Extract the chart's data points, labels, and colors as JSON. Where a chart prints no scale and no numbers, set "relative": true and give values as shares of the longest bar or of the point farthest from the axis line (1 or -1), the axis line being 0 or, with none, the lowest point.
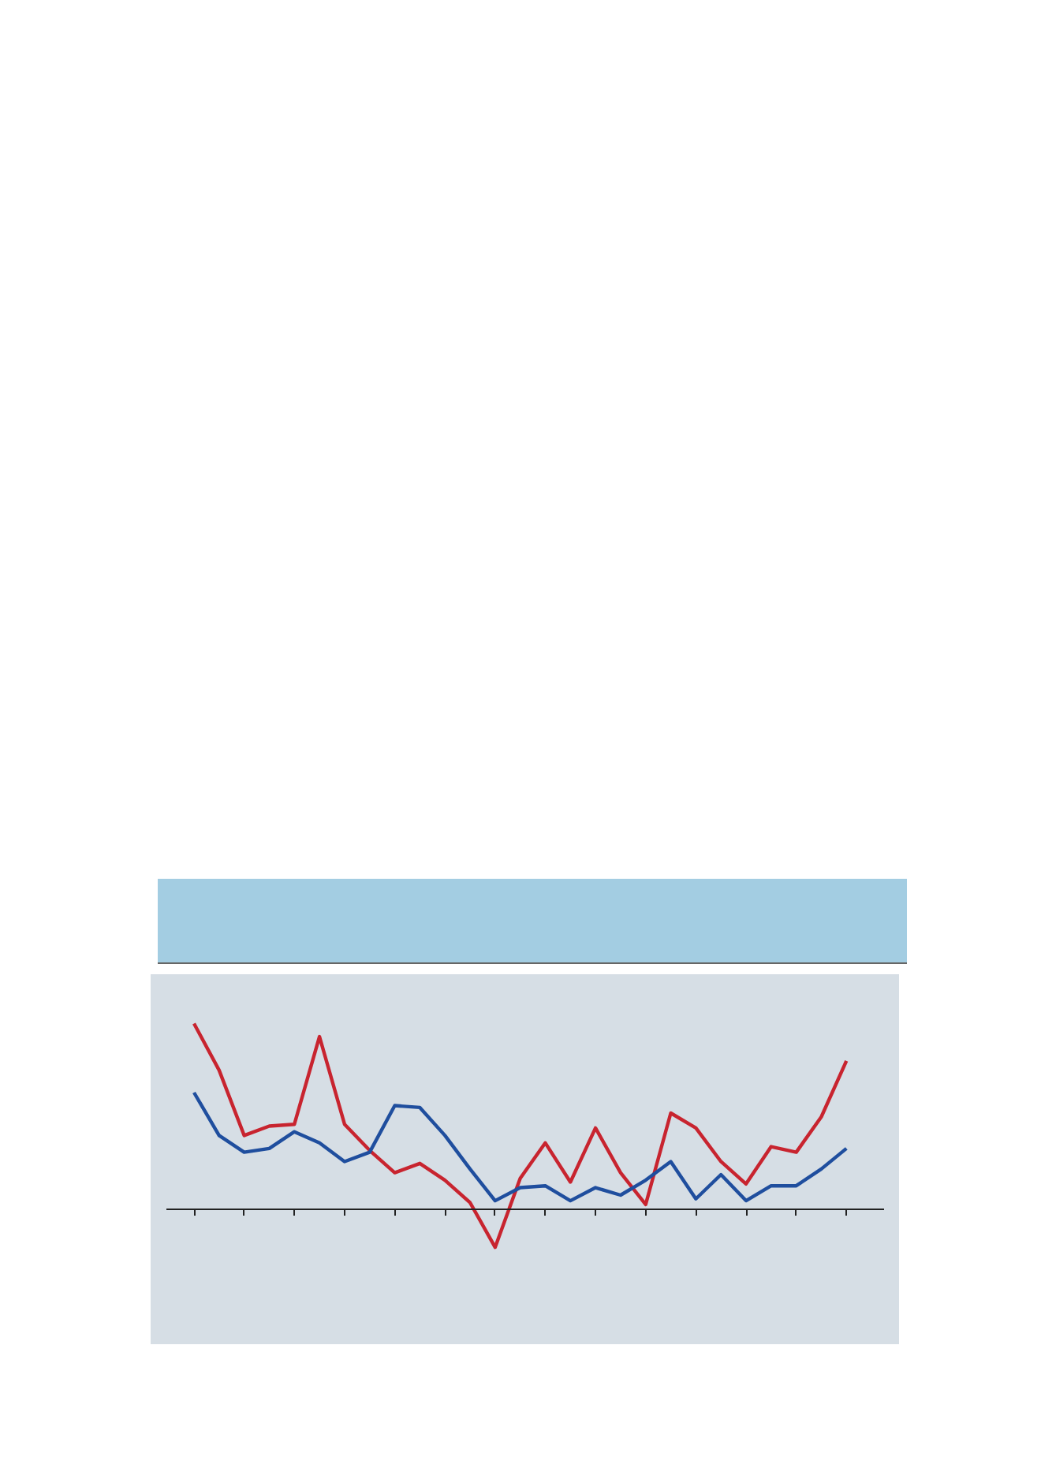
{
  "chart_data": {
    "type": "line",
    "relative": true,
    "categories": [
      null,
      null,
      null,
      null,
      null,
      null,
      null,
      null,
      null,
      null,
      null,
      null,
      null,
      null,
      null,
      null,
      null,
      null,
      null,
      null,
      null,
      null,
      null,
      null,
      null,
      null,
      null
    ],
    "series": [
      {
        "color": "#c8242f",
        "values": [
          1,
          0.75,
          0.4,
          0.45,
          0.46,
          0.93,
          0.46,
          0.32,
          0.2,
          0.25,
          0.16,
          0.04,
          -0.2,
          0.17,
          0.36,
          0.15,
          0.44,
          0.2,
          0.03,
          0.52,
          0.44,
          0.26,
          0.14,
          0.34,
          0.31,
          0.5,
          0.8
        ]
      },
      {
        "color": "#1f4e9e",
        "values": [
          0.63,
          0.4,
          0.31,
          0.33,
          0.42,
          0.36,
          0.26,
          0.31,
          0.56,
          0.55,
          0.4,
          0.22,
          0.05,
          0.12,
          0.13,
          0.05,
          0.12,
          0.08,
          0.16,
          0.26,
          0.06,
          0.19,
          0.05,
          0.13,
          0.13,
          0.22,
          0.33
        ]
      }
    ],
    "grid": false,
    "marker": "none",
    "line_style": "solid",
    "tick_labels": false
  }
}
